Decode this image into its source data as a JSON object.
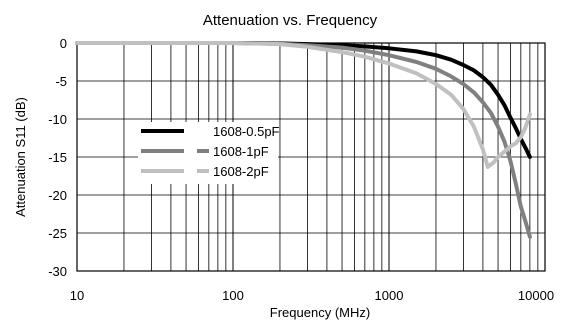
{
  "chart_data": {
    "type": "line",
    "title": "Attenuation vs. Frequency",
    "xlabel": "Frequency (MHz)",
    "ylabel": "Attenuation S11 (dB)",
    "x_scale": "log",
    "xlim": [
      10,
      10000
    ],
    "ylim": [
      -30,
      0
    ],
    "x_ticks": [
      "10",
      "100",
      "1000",
      "10000"
    ],
    "y_ticks": [
      "0",
      "-5",
      "-10",
      "-15",
      "-20",
      "-25",
      "-30"
    ],
    "grid": true,
    "legend_position": "left-middle",
    "series": [
      {
        "name": "1608-0.5pF",
        "color": "#000000",
        "x": [
          10,
          20,
          50,
          100,
          200,
          300,
          500,
          700,
          1000,
          1500,
          2000,
          2500,
          3000,
          3500,
          4000,
          4500,
          5000,
          5500,
          6000,
          6500,
          7000,
          7500,
          8000
        ],
        "y": [
          0,
          0,
          0,
          0,
          -0.05,
          -0.15,
          -0.3,
          -0.45,
          -0.7,
          -1.1,
          -1.6,
          -2.2,
          -2.9,
          -3.6,
          -4.5,
          -5.5,
          -6.8,
          -8.2,
          -9.8,
          -11.2,
          -12.6,
          -13.8,
          -15
        ]
      },
      {
        "name": "1608-1pF",
        "color": "#808080",
        "x": [
          10,
          20,
          50,
          100,
          200,
          300,
          500,
          700,
          1000,
          1500,
          2000,
          2500,
          3000,
          3500,
          4000,
          4500,
          5000,
          5500,
          6000,
          6500,
          7000,
          7500,
          8000
        ],
        "y": [
          0,
          0,
          0,
          0,
          -0.1,
          -0.3,
          -0.6,
          -1.0,
          -1.6,
          -2.5,
          -3.4,
          -4.4,
          -5.4,
          -6.5,
          -7.8,
          -9.2,
          -11.0,
          -13.0,
          -15.5,
          -18.5,
          -21.5,
          -23.5,
          -25.5
        ]
      },
      {
        "name": "1608-2pF",
        "color": "#c0c0c0",
        "x": [
          10,
          20,
          50,
          100,
          200,
          300,
          500,
          700,
          1000,
          1500,
          2000,
          2500,
          3000,
          3500,
          4000,
          4300,
          4700,
          5000,
          5500,
          6000,
          6500,
          7000,
          7500,
          8000
        ],
        "y": [
          0,
          0,
          0,
          0,
          -0.15,
          -0.5,
          -1.2,
          -1.8,
          -2.7,
          -4.0,
          -5.4,
          -6.8,
          -8.7,
          -11.0,
          -14.0,
          -16.3,
          -15.7,
          -15.0,
          -14.3,
          -13.6,
          -13.2,
          -12.4,
          -11.1,
          -9.4
        ]
      }
    ]
  }
}
